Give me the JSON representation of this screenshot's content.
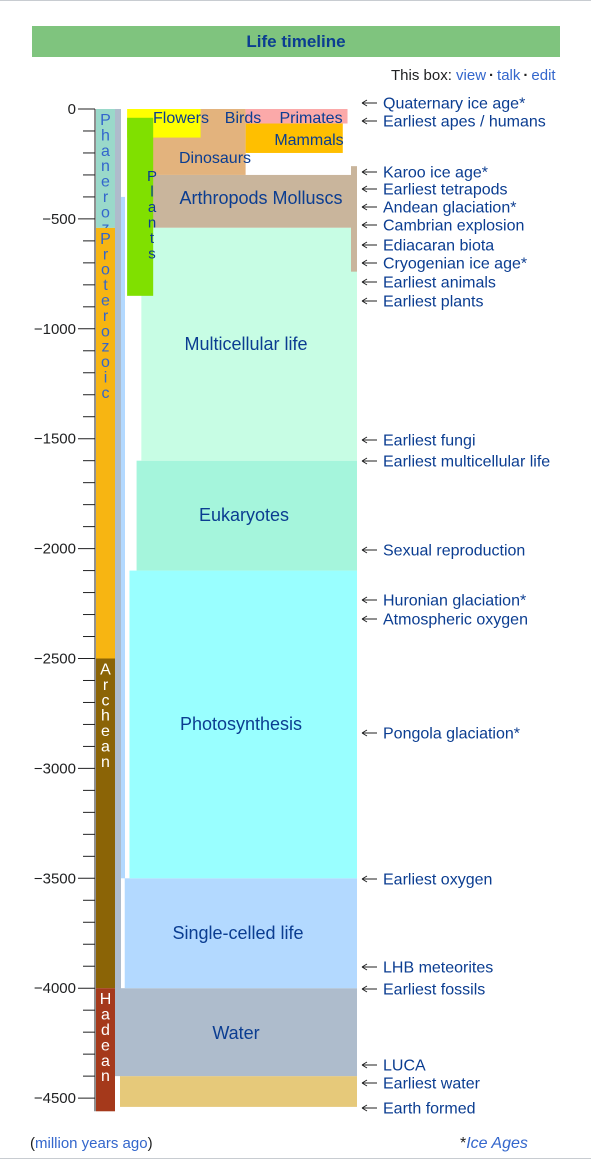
{
  "title": "Life timeline",
  "nav": {
    "prefix": "This box:",
    "links": [
      "view",
      "talk",
      "edit"
    ]
  },
  "axis": {
    "ticks": [
      0,
      -500,
      -1000,
      -1500,
      -2000,
      -2500,
      -3000,
      -3500,
      -4000,
      -4500
    ],
    "min": -4560,
    "max": 0,
    "minor_step": 100
  },
  "footer": {
    "units": "million years ago",
    "ice_note": "Ice Ages"
  },
  "colors": {
    "title_bg": "#7fc47e",
    "title_text": "#0b3d91",
    "link": "#3366cc"
  },
  "eons": [
    {
      "name": "Phanerozoic",
      "start": 0,
      "end": -541,
      "color": "#9ad9ca",
      "text_color": "#3366cc"
    },
    {
      "name": "Proterozoic",
      "start": -541,
      "end": -2500,
      "color": "#f7b512",
      "text_color": "#3366cc"
    },
    {
      "name": "Archean",
      "start": -2500,
      "end": -4000,
      "color": "#8b6406",
      "text_color": "#ffffff"
    },
    {
      "name": "Hadean",
      "start": -4000,
      "end": -4560,
      "color": "#a5391b",
      "text_color": "#ffffff"
    }
  ],
  "life_blocks": [
    {
      "label": "Earth formed base",
      "start": -4400,
      "end": -4540,
      "left": 0,
      "right": 1,
      "color": "#e6c97a",
      "text": ""
    },
    {
      "label": "Water",
      "start": -4000,
      "end": -4400,
      "left": 0,
      "right": 1,
      "color": "#aebccc",
      "text": "Water"
    },
    {
      "label": "Single-celled life",
      "start": -3500,
      "end": -4000,
      "left": 0.02,
      "right": 1,
      "color": "#b3d9ff",
      "text": "Single-celled life"
    },
    {
      "label": "Photosynthesis",
      "start": -2100,
      "end": -3500,
      "left": 0.04,
      "right": 1,
      "color": "#99ffff",
      "text": "Photosynthesis"
    },
    {
      "label": "Eukaryotes",
      "start": -1600,
      "end": -2100,
      "left": 0.07,
      "right": 1,
      "color": "#a5f5dc",
      "text": "Eukaryotes"
    },
    {
      "label": "Multicellular life",
      "start": -540,
      "end": -1600,
      "left": 0.09,
      "right": 1,
      "color": "#c7fde4",
      "text": "Multicellular life"
    },
    {
      "label": "Arthropods Molluscs",
      "start": -300,
      "end": -540,
      "left": 0.13,
      "right": 1,
      "color": "#c9b59c",
      "text": "Arthropods Molluscs"
    },
    {
      "label": "Dinosaurs",
      "start": -66,
      "end": -300,
      "left": 0.13,
      "right": 0.53,
      "color": "#e3b37d",
      "text": "Dinosaurs"
    },
    {
      "label": "Mammals",
      "start": -15,
      "end": -200,
      "left": 0.53,
      "right": 0.94,
      "color": "#ffbf00",
      "text": "Mammals"
    },
    {
      "label": "Birds",
      "start": 0,
      "end": -150,
      "left": 0.34,
      "right": 0.53,
      "color": "#e3b37d",
      "text": "Birds"
    },
    {
      "label": "Primates",
      "start": 0,
      "end": -66,
      "left": 0.53,
      "right": 0.96,
      "color": "#fba9a9",
      "text": "Primates"
    },
    {
      "label": "Flowers",
      "start": 0,
      "end": -130,
      "left": 0.03,
      "right": 0.34,
      "color": "#ffff00",
      "text": "Flowers"
    },
    {
      "label": "Plants",
      "start": -40,
      "end": -850,
      "left": 0.03,
      "right": 0.14,
      "color": "#80e000",
      "text": "Plants"
    }
  ],
  "events": [
    {
      "label": "Quaternary ice age*",
      "time": -2.6
    },
    {
      "label": "Earliest apes / humans",
      "time": -6
    },
    {
      "label": "Karoo ice age*",
      "time": -300
    },
    {
      "label": "Earliest tetrapods",
      "time": -370
    },
    {
      "label": "Andean glaciation*",
      "time": -450
    },
    {
      "label": "Cambrian explosion",
      "time": -540
    },
    {
      "label": "Ediacaran biota",
      "time": -580
    },
    {
      "label": "Cryogenian ice age*",
      "time": -720
    },
    {
      "label": "Earliest animals",
      "time": -760
    },
    {
      "label": "Earliest plants",
      "time": -850
    },
    {
      "label": "Earliest fungi",
      "time": -1500
    },
    {
      "label": "Earliest multicellular life",
      "time": -1600
    },
    {
      "label": "Sexual reproduction",
      "time": -2000
    },
    {
      "label": "Huronian glaciation*",
      "time": -2250
    },
    {
      "label": "Atmospheric oxygen",
      "time": -2300
    },
    {
      "label": "Pongola glaciation*",
      "time": -2900
    },
    {
      "label": "Earliest oxygen",
      "time": -3500
    },
    {
      "label": "LHB meteorites",
      "time": -3900
    },
    {
      "label": "Earliest fossils",
      "time": -4000
    },
    {
      "label": "LUCA",
      "time": -4350
    },
    {
      "label": "Earliest water",
      "time": -4400
    },
    {
      "label": "Earth formed",
      "time": -4540
    }
  ],
  "ice_bar": {
    "start": -260,
    "end": -740,
    "color": "#c9b59c"
  }
}
